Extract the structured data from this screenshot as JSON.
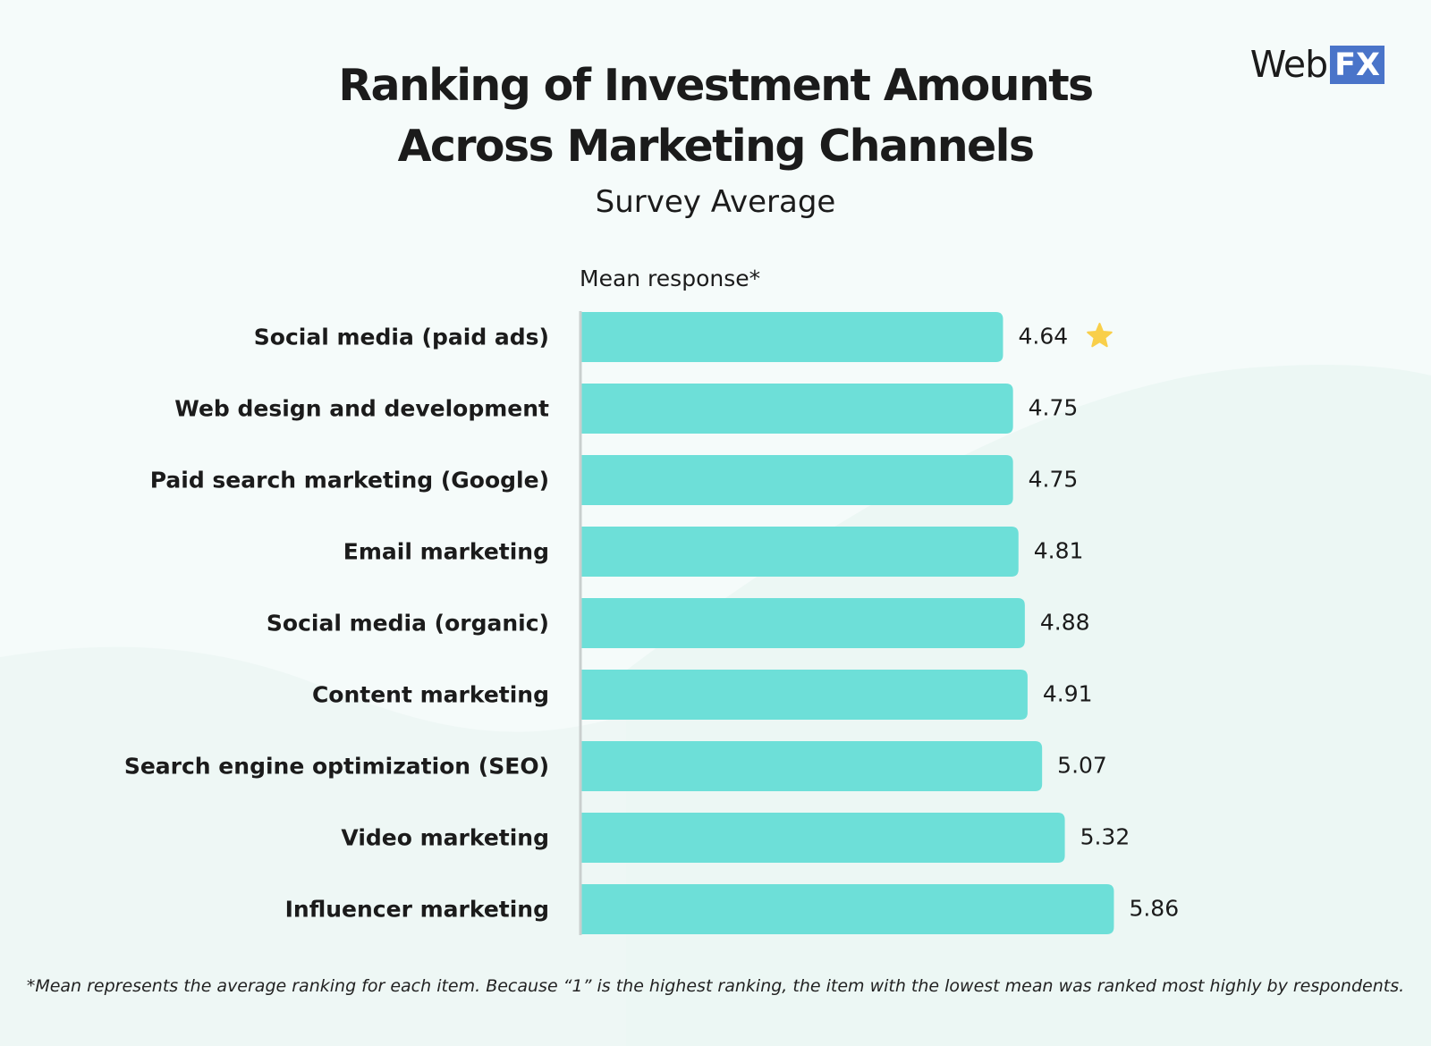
{
  "brand": {
    "logo_web": "Web",
    "logo_fx": "FX",
    "accent": "#4a74c9"
  },
  "chart_data": {
    "type": "bar",
    "orientation": "horizontal",
    "title_lines": [
      "Ranking of Investment Amounts",
      "Across Marketing Channels"
    ],
    "subtitle": "Survey Average",
    "xlabel": "Mean response*",
    "ylabel": "",
    "xlim": [
      0,
      6.2
    ],
    "grid": false,
    "legend": "none",
    "bar_color": "#6ddfd8",
    "categories": [
      "Social media (paid ads)",
      "Web design and development",
      "Paid search marketing (Google)",
      "Email marketing",
      "Social media (organic)",
      "Content marketing",
      "Search engine optimization (SEO)",
      "Video marketing",
      "Influencer marketing"
    ],
    "values": [
      4.64,
      4.75,
      4.75,
      4.81,
      4.88,
      4.91,
      5.07,
      5.32,
      5.86
    ],
    "value_labels": [
      "4.64",
      "4.75",
      "4.75",
      "4.81",
      "4.88",
      "4.91",
      "5.07",
      "5.32",
      "5.86"
    ],
    "highlight": {
      "category": "Social media (paid ads)",
      "icon": "star-icon",
      "color": "#f9cf4a"
    }
  },
  "footnote": "*Mean represents the average ranking for each item. Because “1” is the highest ranking, the item with the lowest mean was ranked most highly by respondents."
}
